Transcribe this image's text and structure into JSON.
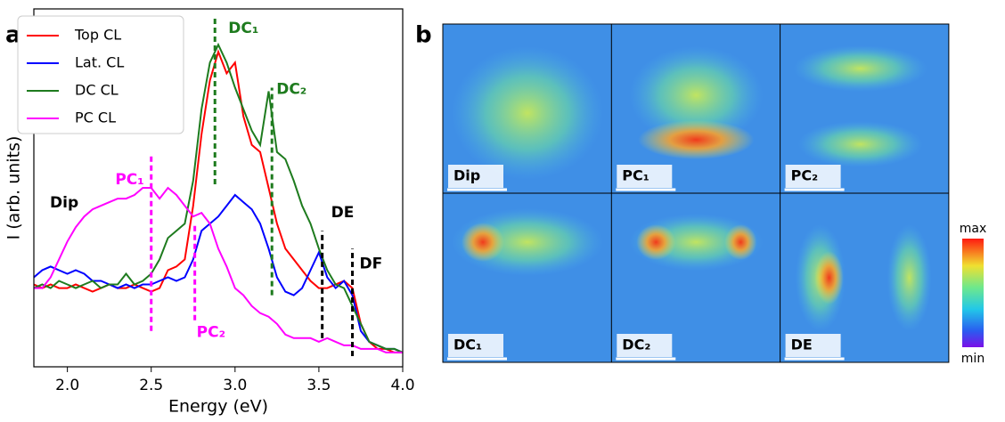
{
  "chart_data": [
    {
      "type": "line",
      "panel_label": "a",
      "xlabel": "Energy (eV)",
      "ylabel": "I (arb. units)",
      "xlim": [
        1.8,
        4.0
      ],
      "ylim": [
        0,
        1
      ],
      "xticks": [
        {
          "value": 2,
          "label": "2.0"
        },
        {
          "value": 2.5,
          "label": "2.5"
        },
        {
          "value": 3,
          "label": "3.0"
        },
        {
          "value": 3.5,
          "label": "3.5"
        },
        {
          "value": 4,
          "label": "4.0"
        }
      ],
      "legend": "upper left",
      "x": [
        1.8,
        1.85,
        1.9,
        1.95,
        2.0,
        2.05,
        2.1,
        2.15,
        2.2,
        2.25,
        2.3,
        2.35,
        2.4,
        2.45,
        2.5,
        2.55,
        2.6,
        2.65,
        2.7,
        2.75,
        2.8,
        2.85,
        2.9,
        2.95,
        3.0,
        3.05,
        3.1,
        3.15,
        3.2,
        3.25,
        3.3,
        3.35,
        3.4,
        3.45,
        3.5,
        3.55,
        3.6,
        3.65,
        3.7,
        3.75,
        3.8,
        3.85,
        3.9,
        3.95,
        4.0
      ],
      "series": [
        {
          "name": "Top CL",
          "color": "#ff0000",
          "values": [
            0.23,
            0.22,
            0.23,
            0.22,
            0.22,
            0.23,
            0.22,
            0.21,
            0.22,
            0.23,
            0.22,
            0.22,
            0.23,
            0.22,
            0.21,
            0.22,
            0.27,
            0.28,
            0.3,
            0.45,
            0.65,
            0.8,
            0.88,
            0.82,
            0.85,
            0.7,
            0.62,
            0.6,
            0.5,
            0.4,
            0.33,
            0.3,
            0.27,
            0.24,
            0.22,
            0.22,
            0.23,
            0.24,
            0.22,
            0.12,
            0.07,
            0.05,
            0.05,
            0.04,
            0.04
          ]
        },
        {
          "name": "Lat. CL",
          "color": "#0000ff",
          "values": [
            0.25,
            0.27,
            0.28,
            0.27,
            0.26,
            0.27,
            0.26,
            0.24,
            0.24,
            0.23,
            0.22,
            0.23,
            0.22,
            0.23,
            0.23,
            0.24,
            0.25,
            0.24,
            0.25,
            0.3,
            0.38,
            0.4,
            0.42,
            0.45,
            0.48,
            0.46,
            0.44,
            0.4,
            0.33,
            0.25,
            0.21,
            0.2,
            0.22,
            0.27,
            0.32,
            0.25,
            0.22,
            0.24,
            0.2,
            0.1,
            0.07,
            0.06,
            0.05,
            0.05,
            0.04
          ]
        },
        {
          "name": "DC CL",
          "color": "#1e7b1e",
          "values": [
            0.22,
            0.23,
            0.22,
            0.24,
            0.23,
            0.22,
            0.23,
            0.24,
            0.22,
            0.23,
            0.23,
            0.26,
            0.23,
            0.24,
            0.26,
            0.3,
            0.36,
            0.38,
            0.4,
            0.52,
            0.72,
            0.85,
            0.9,
            0.85,
            0.78,
            0.72,
            0.66,
            0.62,
            0.77,
            0.6,
            0.58,
            0.52,
            0.45,
            0.4,
            0.33,
            0.27,
            0.23,
            0.22,
            0.17,
            0.12,
            0.07,
            0.06,
            0.05,
            0.05,
            0.04
          ]
        },
        {
          "name": "PC CL",
          "color": "#ff00ff",
          "values": [
            0.22,
            0.22,
            0.25,
            0.3,
            0.35,
            0.39,
            0.42,
            0.44,
            0.45,
            0.46,
            0.47,
            0.47,
            0.48,
            0.5,
            0.5,
            0.47,
            0.5,
            0.48,
            0.45,
            0.42,
            0.43,
            0.4,
            0.33,
            0.28,
            0.22,
            0.2,
            0.17,
            0.15,
            0.14,
            0.12,
            0.09,
            0.08,
            0.08,
            0.08,
            0.07,
            0.08,
            0.07,
            0.06,
            0.06,
            0.05,
            0.05,
            0.05,
            0.04,
            0.04,
            0.04
          ]
        }
      ],
      "annotations": [
        "Dip"
      ],
      "vlines": [
        {
          "label": "PC₁",
          "x": 2.5,
          "ymin": 0.1,
          "ymax": 0.59,
          "color": "#ff00ff"
        },
        {
          "label": "PC₂",
          "x": 2.76,
          "ymin": 0.13,
          "ymax": 0.4,
          "color": "#ff00ff"
        },
        {
          "label": "DC₁",
          "x": 2.88,
          "ymin": 0.51,
          "ymax": 0.98,
          "color": "#1e7b1e"
        },
        {
          "label": "DC₂",
          "x": 3.22,
          "ymin": 0.2,
          "ymax": 0.78,
          "color": "#1e7b1e"
        },
        {
          "label": "DE",
          "x": 3.52,
          "ymin": 0.08,
          "ymax": 0.38,
          "color": "#000000"
        },
        {
          "label": "DF",
          "x": 3.7,
          "ymin": 0.03,
          "ymax": 0.33,
          "color": "#000000"
        }
      ]
    },
    {
      "type": "image_grid",
      "panel_label": "b",
      "panels": [
        "Dip",
        "PC₁",
        "PC₂",
        "DC₁",
        "DC₂",
        "DE"
      ],
      "colorbar_max": "max",
      "colorbar_min": "min"
    }
  ]
}
